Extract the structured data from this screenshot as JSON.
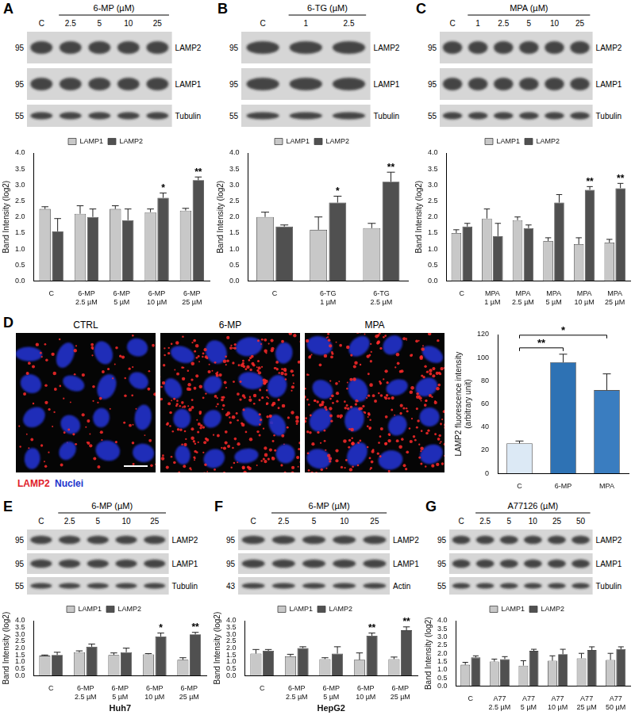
{
  "chart_data": [
    {
      "type": "bar",
      "ylabel": "Band Intensity (log2)",
      "legend": "top",
      "grid": false,
      "categories": [
        "C",
        "6-MP 2.5 µM",
        "6-MP 5 µM",
        "6-MP 10 µM",
        "6-MP 25 µM"
      ],
      "series": [
        {
          "name": "LAMP1",
          "color": "#c8c8c8",
          "values": [
            2.25,
            2.1,
            2.25,
            2.15,
            2.2
          ],
          "errors": [
            0.07,
            0.25,
            0.1,
            0.1,
            0.07
          ]
        },
        {
          "name": "LAMP2",
          "color": "#505050",
          "values": [
            1.55,
            2.0,
            1.9,
            2.6,
            3.15
          ],
          "errors": [
            0.4,
            0.25,
            0.35,
            0.15,
            0.1
          ],
          "significance": [
            null,
            null,
            null,
            "*",
            "**"
          ]
        }
      ],
      "ylim": [
        0,
        4
      ],
      "yticks": [
        {
          "value": 0,
          "label": "0.0"
        },
        {
          "value": 0.5,
          "label": "0.5"
        },
        {
          "value": 1,
          "label": "1.0"
        },
        {
          "value": 1.5,
          "label": "1.5"
        },
        {
          "value": 2,
          "label": "2.0"
        },
        {
          "value": 2.5,
          "label": "2.5"
        },
        {
          "value": 3,
          "label": "3.0"
        },
        {
          "value": 3.5,
          "label": "3.5"
        },
        {
          "value": 4,
          "label": "4.0"
        }
      ]
    },
    {
      "type": "bar",
      "ylabel": "Band Intensity (log2)",
      "legend": "top",
      "grid": false,
      "categories": [
        "C",
        "6-TG 1 µM",
        "6-TG 2.5 µM"
      ],
      "series": [
        {
          "name": "LAMP1",
          "color": "#c8c8c8",
          "values": [
            2.0,
            1.6,
            1.65
          ],
          "errors": [
            0.15,
            0.4,
            0.15
          ]
        },
        {
          "name": "LAMP2",
          "color": "#505050",
          "values": [
            1.7,
            2.45,
            3.1
          ],
          "errors": [
            0.05,
            0.2,
            0.3
          ],
          "significance": [
            null,
            "*",
            "**"
          ]
        }
      ],
      "ylim": [
        0,
        4
      ],
      "yticks": [
        {
          "value": 0,
          "label": "0.0"
        },
        {
          "value": 0.5,
          "label": "0.5"
        },
        {
          "value": 1,
          "label": "1.0"
        },
        {
          "value": 1.5,
          "label": "1.5"
        },
        {
          "value": 2,
          "label": "2.0"
        },
        {
          "value": 2.5,
          "label": "2.5"
        },
        {
          "value": 3,
          "label": "3.0"
        },
        {
          "value": 3.5,
          "label": "3.5"
        },
        {
          "value": 4,
          "label": "4.0"
        }
      ]
    },
    {
      "type": "bar",
      "ylabel": "Band Intensity (log2)",
      "legend": "top",
      "grid": false,
      "categories": [
        "C",
        "MPA 1 µM",
        "MPA 2.5 µM",
        "MPA 5 µM",
        "MPA 10 µM",
        "MPA 25 µM"
      ],
      "series": [
        {
          "name": "LAMP1",
          "color": "#c8c8c8",
          "values": [
            1.5,
            1.95,
            1.9,
            1.25,
            1.15,
            1.2
          ],
          "errors": [
            0.1,
            0.3,
            0.1,
            0.1,
            0.2,
            0.1
          ]
        },
        {
          "name": "LAMP2",
          "color": "#505050",
          "values": [
            1.7,
            1.4,
            1.65,
            2.45,
            2.85,
            2.9
          ],
          "errors": [
            0.1,
            0.4,
            0.1,
            0.25,
            0.1,
            0.15
          ],
          "significance": [
            null,
            null,
            null,
            null,
            "**",
            "**"
          ]
        }
      ],
      "ylim": [
        0,
        4
      ],
      "yticks": [
        {
          "value": 0,
          "label": "0.0"
        },
        {
          "value": 0.5,
          "label": "0.5"
        },
        {
          "value": 1,
          "label": "1.0"
        },
        {
          "value": 1.5,
          "label": "1.5"
        },
        {
          "value": 2,
          "label": "2.0"
        },
        {
          "value": 2.5,
          "label": "2.5"
        },
        {
          "value": 3,
          "label": "3.0"
        },
        {
          "value": 3.5,
          "label": "3.5"
        },
        {
          "value": 4,
          "label": "4.0"
        }
      ]
    },
    {
      "type": "bar",
      "ylabel": [
        "LAMP2 fluorescence intensity",
        "(arbitrary unit)"
      ],
      "grid": false,
      "categories": [
        "C",
        "6-MP",
        "MPA"
      ],
      "values": [
        26,
        96,
        72
      ],
      "errors": [
        2,
        7,
        14
      ],
      "colors": [
        "#dce9f5",
        "#2e72b4",
        "#3a7dc0"
      ],
      "significance": [
        {
          "from": "C",
          "to": "6-MP",
          "label": "**"
        },
        {
          "from": "C",
          "to": "MPA",
          "label": "*"
        }
      ],
      "ylim": [
        0,
        120
      ],
      "yticks": [
        0,
        20,
        40,
        60,
        80,
        100,
        120
      ]
    },
    {
      "type": "bar",
      "ylabel": "Band Intensity (log2)",
      "xlabel": "Huh7",
      "legend": "top",
      "grid": false,
      "categories": [
        "C",
        "6-MP 2.5 µM",
        "6-MP 5 µM",
        "6-MP 10 µM",
        "6-MP 25 µM"
      ],
      "series": [
        {
          "name": "LAMP1",
          "color": "#c8c8c8",
          "values": [
            1.45,
            1.7,
            1.5,
            1.55,
            1.15
          ],
          "errors": [
            0.05,
            0.1,
            0.15,
            0.05,
            0.15
          ]
        },
        {
          "name": "LAMP2",
          "color": "#505050",
          "values": [
            1.5,
            2.1,
            1.7,
            2.85,
            3.0
          ],
          "errors": [
            0.2,
            0.2,
            0.3,
            0.25,
            0.15
          ],
          "significance": [
            null,
            null,
            null,
            "*",
            "**"
          ]
        }
      ],
      "ylim": [
        0,
        4
      ],
      "yticks": [
        {
          "value": 0,
          "label": "0.0"
        },
        {
          "value": 0.5,
          "label": "0.5"
        },
        {
          "value": 1,
          "label": "1.0"
        },
        {
          "value": 1.5,
          "label": "1.5"
        },
        {
          "value": 2,
          "label": "2.0"
        },
        {
          "value": 2.5,
          "label": "2.5"
        },
        {
          "value": 3,
          "label": "3.0"
        },
        {
          "value": 3.5,
          "label": "3.5"
        },
        {
          "value": 4,
          "label": "4.0"
        }
      ]
    },
    {
      "type": "bar",
      "ylabel": "Band Intensity (log2)",
      "xlabel": "HepG2",
      "legend": "top",
      "grid": false,
      "categories": [
        "C",
        "6-MP 2.5 µM",
        "6-MP 5 µM",
        "6-MP 10 µM",
        "6-MP 25 µM"
      ],
      "series": [
        {
          "name": "LAMP1",
          "color": "#c8c8c8",
          "values": [
            1.6,
            1.4,
            1.2,
            1.15,
            1.2
          ],
          "errors": [
            0.3,
            0.15,
            0.1,
            0.5,
            0.15
          ]
        },
        {
          "name": "LAMP2",
          "color": "#505050",
          "values": [
            1.8,
            2.0,
            1.6,
            2.9,
            3.3
          ],
          "errors": [
            0.1,
            0.1,
            0.5,
            0.2,
            0.25
          ],
          "significance": [
            null,
            null,
            null,
            "**",
            "**"
          ]
        }
      ],
      "ylim": [
        0,
        4
      ],
      "yticks": [
        {
          "value": 0,
          "label": "0.0"
        },
        {
          "value": 0.5,
          "label": "0.5"
        },
        {
          "value": 1,
          "label": "1.0"
        },
        {
          "value": 1.5,
          "label": "1.5"
        },
        {
          "value": 2,
          "label": "2.0"
        },
        {
          "value": 2.5,
          "label": "2.5"
        },
        {
          "value": 3,
          "label": "3.0"
        },
        {
          "value": 3.5,
          "label": "3.5"
        },
        {
          "value": 4,
          "label": "4.0"
        }
      ]
    },
    {
      "type": "bar",
      "ylabel": "Band Intensity (log2)",
      "legend": "top",
      "grid": false,
      "categories": [
        "C",
        "A77 2.5 µM",
        "A77 5 µM",
        "A77 10 µM",
        "A77 25 µM",
        "A77 50 µM"
      ],
      "series": [
        {
          "name": "LAMP1",
          "color": "#c8c8c8",
          "values": [
            1.3,
            1.5,
            1.25,
            1.55,
            1.7,
            1.6
          ],
          "errors": [
            0.15,
            0.15,
            0.3,
            0.3,
            0.3,
            0.4
          ]
        },
        {
          "name": "LAMP2",
          "color": "#505050",
          "values": [
            1.75,
            1.65,
            2.15,
            1.95,
            2.2,
            2.25
          ],
          "errors": [
            0.1,
            0.15,
            0.1,
            0.3,
            0.2,
            0.15
          ]
        }
      ],
      "ylim": [
        0,
        4
      ],
      "yticks": [
        {
          "value": 0,
          "label": "0.0"
        },
        {
          "value": 0.5,
          "label": "0.5"
        },
        {
          "value": 1,
          "label": "1.0"
        },
        {
          "value": 1.5,
          "label": "1.5"
        },
        {
          "value": 2,
          "label": "2.0"
        },
        {
          "value": 2.5,
          "label": "2.5"
        },
        {
          "value": 3,
          "label": "3.0"
        },
        {
          "value": 3.5,
          "label": "3.5"
        },
        {
          "value": 4,
          "label": "4.0"
        }
      ]
    }
  ],
  "blots": [
    {
      "panel": "A",
      "header": "6-MP (µM)",
      "lanes": [
        "C",
        "2.5",
        "5",
        "10",
        "25"
      ],
      "rows": [
        {
          "mw": "95",
          "label": "LAMP2"
        },
        {
          "mw": "95",
          "label": "LAMP1"
        },
        {
          "mw": "55",
          "label": "Tubulin"
        }
      ]
    },
    {
      "panel": "B",
      "header": "6-TG (µM)",
      "lanes": [
        "C",
        "1",
        "2.5"
      ],
      "rows": [
        {
          "mw": "95",
          "label": "LAMP2"
        },
        {
          "mw": "95",
          "label": "LAMP1"
        },
        {
          "mw": "55",
          "label": "Tubulin"
        }
      ]
    },
    {
      "panel": "C",
      "header": "MPA (µM)",
      "lanes": [
        "C",
        "1",
        "2.5",
        "5",
        "10",
        "25"
      ],
      "rows": [
        {
          "mw": "95",
          "label": "LAMP2"
        },
        {
          "mw": "95",
          "label": "LAMP1"
        },
        {
          "mw": "55",
          "label": "Tubulin"
        }
      ]
    },
    {
      "panel": "E",
      "header": "6-MP (µM)",
      "lanes": [
        "C",
        "2.5",
        "5",
        "10",
        "25"
      ],
      "rows": [
        {
          "mw": "95",
          "label": "LAMP2"
        },
        {
          "mw": "95",
          "label": "LAMP1"
        },
        {
          "mw": "55",
          "label": "Tubulin"
        }
      ]
    },
    {
      "panel": "F",
      "header": "6-MP (µM)",
      "lanes": [
        "C",
        "2.5",
        "5",
        "10",
        "25"
      ],
      "rows": [
        {
          "mw": "95",
          "label": "LAMP2"
        },
        {
          "mw": "95",
          "label": "LAMP1"
        },
        {
          "mw": "43",
          "label": "Actin"
        }
      ]
    },
    {
      "panel": "G",
      "header": "A77126 (µM)",
      "lanes": [
        "C",
        "2.5",
        "5",
        "10",
        "25",
        "50"
      ],
      "rows": [
        {
          "mw": "95",
          "label": "LAMP2"
        },
        {
          "mw": "95",
          "label": "LAMP1"
        },
        {
          "mw": "55",
          "label": "Tubulin"
        }
      ]
    }
  ],
  "images": {
    "panel": "D",
    "labels": [
      "CTRL",
      "6-MP",
      "MPA"
    ],
    "legend": [
      {
        "text": "LAMP2",
        "color": "#e0202a"
      },
      {
        "text": "Nuclei",
        "color": "#2233cc"
      }
    ]
  }
}
